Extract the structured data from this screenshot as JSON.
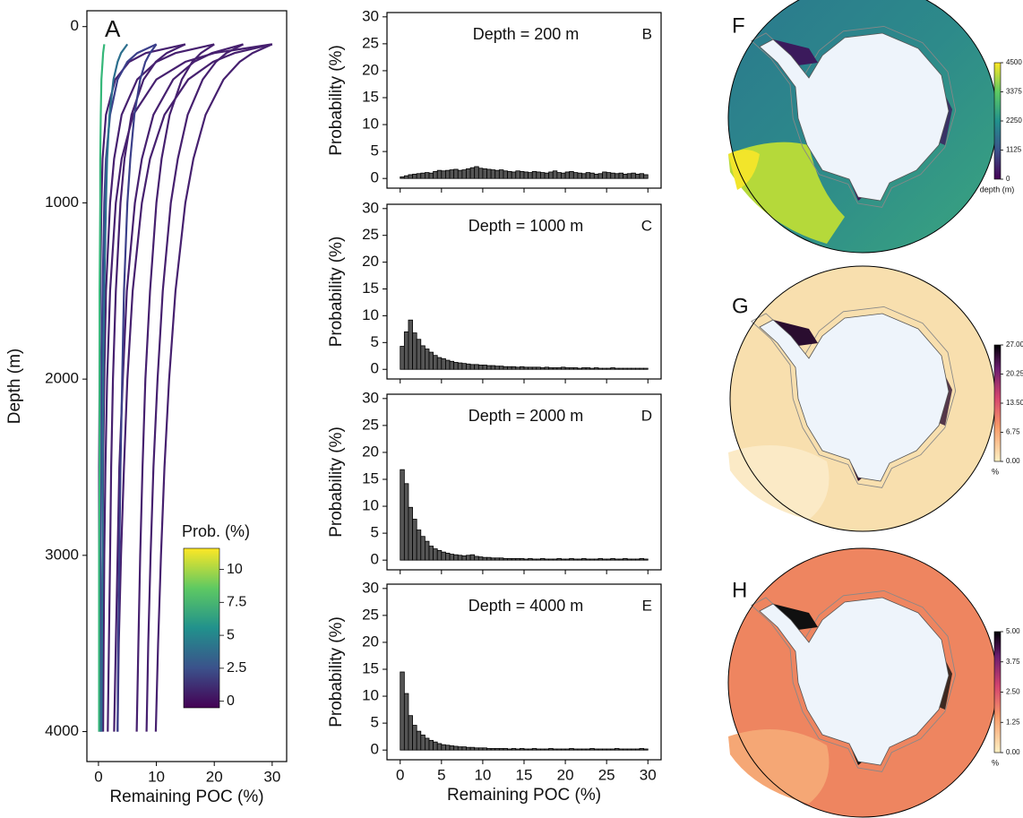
{
  "chart_data": [
    {
      "type": "line",
      "panel": "A",
      "xlabel": "Remaining POC (%)",
      "ylabel": "Depth (m)",
      "xlim": [
        -2,
        32.5
      ],
      "xticks": [
        0,
        10,
        20,
        30
      ],
      "ylim": [
        4170,
        -90
      ],
      "yticks": [
        0,
        1000,
        2000,
        3000,
        4000
      ],
      "y": [
        100,
        150,
        200,
        300,
        500,
        750,
        1000,
        1500,
        2000,
        2500,
        3000,
        3500,
        4000
      ],
      "series": [
        {
          "color": "#46206f",
          "values": [
            30,
            26.6,
            24.4,
            21.6,
            18.5,
            16.4,
            15.0,
            13.3,
            12.2,
            11.4,
            10.8,
            10.3,
            9.9
          ]
        },
        {
          "color": "#46206f",
          "values": [
            30,
            23.5,
            19.8,
            15.5,
            11.4,
            8.9,
            7.5,
            5.9,
            5.0,
            4.4,
            3.9,
            3.5,
            3.3
          ]
        },
        {
          "color": "#46206f",
          "values": [
            30,
            20.0,
            15.0,
            10.0,
            6.0,
            4.0,
            3.0,
            2.0,
            1.5,
            1.2,
            1.0,
            0.9,
            0.8
          ]
        },
        {
          "color": "#46206f",
          "values": [
            25,
            22.1,
            20.3,
            18.0,
            15.4,
            13.7,
            12.5,
            11.1,
            10.2,
            9.5,
            9.0,
            8.6,
            8.3
          ]
        },
        {
          "color": "#46206f",
          "values": [
            25,
            19.6,
            16.5,
            12.9,
            9.5,
            7.5,
            6.3,
            4.9,
            4.2,
            3.6,
            3.3,
            3.0,
            2.7
          ]
        },
        {
          "color": "#46206f",
          "values": [
            20,
            17.7,
            16.2,
            14.4,
            12.3,
            10.9,
            10.0,
            8.9,
            8.1,
            7.6,
            7.2,
            6.9,
            6.6
          ]
        },
        {
          "color": "#46206f",
          "values": [
            20,
            13.3,
            10.0,
            6.7,
            4.0,
            2.7,
            2.0,
            1.3,
            1.0,
            0.8,
            0.7,
            0.6,
            0.5
          ]
        },
        {
          "color": "#46206f",
          "values": [
            15,
            11.8,
            9.9,
            7.8,
            5.7,
            4.5,
            3.8,
            3.0,
            2.5,
            2.2,
            2.0,
            1.8,
            1.6
          ]
        },
        {
          "color": "#46206f",
          "values": [
            15,
            8.2,
            5.3,
            2.9,
            1.3,
            0.7,
            0.5,
            0.3,
            0.2,
            0.1,
            0.1,
            0.1,
            0.1
          ]
        },
        {
          "color": "#3b3f8a",
          "values": [
            10,
            8.9,
            8.1,
            7.2,
            6.2,
            5.5,
            5.0,
            4.4,
            4.1,
            3.8,
            3.6,
            3.4,
            3.3
          ]
        },
        {
          "color": "#3b3f8a",
          "values": [
            10,
            6.7,
            5.0,
            3.3,
            2.0,
            1.3,
            1.0,
            0.7,
            0.5,
            0.4,
            0.3,
            0.3,
            0.3
          ]
        },
        {
          "color": "#2c6f8e",
          "values": [
            5,
            3.9,
            3.3,
            2.6,
            1.9,
            1.5,
            1.3,
            1.0,
            0.8,
            0.7,
            0.7,
            0.6,
            0.5
          ]
        },
        {
          "color": "#35b779",
          "values": [
            1,
            0.8,
            0.7,
            0.5,
            0.4,
            0.3,
            0.3,
            0.2,
            0.2,
            0.2,
            0.1,
            0.1,
            0.1
          ]
        }
      ],
      "colorbar": {
        "label": "Prob. (%)",
        "lim": [
          -0.5,
          11.6
        ],
        "ticks": [
          0,
          2.5,
          5,
          7.5,
          10
        ]
      }
    },
    {
      "type": "histogram",
      "panel": "B",
      "title": "Depth = 200 m",
      "ylabel": "Probability (%)",
      "color": "#555555",
      "xlim": [
        -1.6,
        31.6
      ],
      "xticks": [
        0,
        5,
        10,
        15,
        20,
        25,
        30
      ],
      "ylim": [
        -1.8,
        30.8
      ],
      "yticks": [
        0,
        5,
        10,
        15,
        20,
        25,
        30
      ],
      "bins": [
        0,
        0.5,
        1,
        1.5,
        2,
        2.5,
        3,
        3.5,
        4,
        4.5,
        5,
        5.5,
        6,
        6.5,
        7,
        7.5,
        8,
        8.5,
        9,
        9.5,
        10,
        10.5,
        11,
        11.5,
        12,
        12.5,
        13,
        13.5,
        14,
        14.5,
        15,
        15.5,
        16,
        16.5,
        17,
        17.5,
        18,
        18.5,
        19,
        19.5,
        20,
        20.5,
        21,
        21.5,
        22,
        22.5,
        23,
        23.5,
        24,
        24.5,
        25,
        25.5,
        26,
        26.5,
        27,
        27.5,
        28,
        28.5,
        29,
        29.5,
        30
      ],
      "values": [
        0.3,
        0.5,
        0.7,
        0.8,
        0.9,
        1.0,
        1.1,
        1.0,
        1.3,
        1.5,
        1.4,
        1.5,
        1.6,
        1.7,
        1.5,
        1.6,
        1.8,
        2.0,
        2.2,
        1.9,
        1.8,
        1.7,
        1.6,
        1.5,
        1.6,
        1.4,
        1.3,
        1.2,
        1.4,
        1.3,
        1.2,
        1.1,
        1.3,
        1.2,
        1.1,
        1.0,
        1.2,
        1.4,
        1.1,
        1.0,
        1.2,
        1.3,
        1.1,
        1.0,
        0.9,
        1.1,
        1.0,
        0.8,
        0.9,
        1.2,
        1.1,
        1.0,
        0.9,
        1.0,
        0.8,
        0.9,
        1.0,
        0.8,
        0.9,
        0.7
      ]
    },
    {
      "type": "histogram",
      "panel": "C",
      "title": "Depth = 1000 m",
      "ylabel": "Probability (%)",
      "color": "#555555",
      "xlim": [
        -1.6,
        31.6
      ],
      "xticks": [
        0,
        5,
        10,
        15,
        20,
        25,
        30
      ],
      "ylim": [
        -1.8,
        30.8
      ],
      "yticks": [
        0,
        5,
        10,
        15,
        20,
        25,
        30
      ],
      "bins": [
        0,
        0.5,
        1,
        1.5,
        2,
        2.5,
        3,
        3.5,
        4,
        4.5,
        5,
        5.5,
        6,
        6.5,
        7,
        7.5,
        8,
        8.5,
        9,
        9.5,
        10,
        10.5,
        11,
        11.5,
        12,
        12.5,
        13,
        13.5,
        14,
        14.5,
        15,
        15.5,
        16,
        16.5,
        17,
        17.5,
        18,
        18.5,
        19,
        19.5,
        20,
        20.5,
        21,
        21.5,
        22,
        22.5,
        23,
        23.5,
        24,
        24.5,
        25,
        25.5,
        26,
        26.5,
        27,
        27.5,
        28,
        28.5,
        29,
        29.5,
        30
      ],
      "values": [
        4.3,
        7.0,
        9.2,
        6.8,
        5.6,
        4.4,
        3.8,
        3.2,
        2.6,
        2.2,
        2.0,
        1.7,
        1.5,
        1.3,
        1.2,
        1.1,
        1.0,
        0.9,
        0.9,
        0.8,
        0.8,
        0.7,
        0.7,
        0.6,
        0.6,
        0.5,
        0.5,
        0.5,
        0.4,
        0.5,
        0.4,
        0.4,
        0.4,
        0.4,
        0.3,
        0.4,
        0.3,
        0.3,
        0.3,
        0.4,
        0.3,
        0.3,
        0.3,
        0.2,
        0.3,
        0.3,
        0.2,
        0.3,
        0.2,
        0.2,
        0.2,
        0.3,
        0.2,
        0.2,
        0.2,
        0.2,
        0.2,
        0.2,
        0.2,
        0.2
      ]
    },
    {
      "type": "histogram",
      "panel": "D",
      "title": "Depth = 2000 m",
      "ylabel": "Probability (%)",
      "color": "#555555",
      "xlim": [
        -1.6,
        31.6
      ],
      "xticks": [
        0,
        5,
        10,
        15,
        20,
        25,
        30
      ],
      "ylim": [
        -1.8,
        30.8
      ],
      "yticks": [
        0,
        5,
        10,
        15,
        20,
        25,
        30
      ],
      "bins": [
        0,
        0.5,
        1,
        1.5,
        2,
        2.5,
        3,
        3.5,
        4,
        4.5,
        5,
        5.5,
        6,
        6.5,
        7,
        7.5,
        8,
        8.5,
        9,
        9.5,
        10,
        10.5,
        11,
        11.5,
        12,
        12.5,
        13,
        13.5,
        14,
        14.5,
        15,
        15.5,
        16,
        16.5,
        17,
        17.5,
        18,
        18.5,
        19,
        19.5,
        20,
        20.5,
        21,
        21.5,
        22,
        22.5,
        23,
        23.5,
        24,
        24.5,
        25,
        25.5,
        26,
        26.5,
        27,
        27.5,
        28,
        28.5,
        29,
        29.5,
        30
      ],
      "values": [
        16.8,
        14.2,
        9.8,
        7.6,
        5.6,
        4.4,
        3.5,
        2.6,
        2.1,
        1.8,
        1.5,
        1.3,
        1.1,
        1.0,
        0.9,
        0.8,
        0.9,
        1.0,
        0.7,
        0.6,
        0.5,
        0.5,
        0.4,
        0.4,
        0.4,
        0.3,
        0.3,
        0.3,
        0.3,
        0.3,
        0.2,
        0.3,
        0.2,
        0.2,
        0.3,
        0.2,
        0.2,
        0.2,
        0.3,
        0.2,
        0.2,
        0.3,
        0.2,
        0.2,
        0.3,
        0.2,
        0.2,
        0.2,
        0.3,
        0.2,
        0.2,
        0.3,
        0.2,
        0.2,
        0.3,
        0.2,
        0.2,
        0.2,
        0.3,
        0.2
      ]
    },
    {
      "type": "histogram",
      "panel": "E",
      "title": "Depth = 4000 m",
      "ylabel": "Probability (%)",
      "xlabel": "Remaining POC (%)",
      "color": "#555555",
      "xlim": [
        -1.6,
        31.6
      ],
      "xticks": [
        0,
        5,
        10,
        15,
        20,
        25,
        30
      ],
      "ylim": [
        -1.8,
        30.8
      ],
      "yticks": [
        0,
        5,
        10,
        15,
        20,
        25,
        30
      ],
      "bins": [
        0,
        0.5,
        1,
        1.5,
        2,
        2.5,
        3,
        3.5,
        4,
        4.5,
        5,
        5.5,
        6,
        6.5,
        7,
        7.5,
        8,
        8.5,
        9,
        9.5,
        10,
        10.5,
        11,
        11.5,
        12,
        12.5,
        13,
        13.5,
        14,
        14.5,
        15,
        15.5,
        16,
        16.5,
        17,
        17.5,
        18,
        18.5,
        19,
        19.5,
        20,
        20.5,
        21,
        21.5,
        22,
        22.5,
        23,
        23.5,
        24,
        24.5,
        25,
        25.5,
        26,
        26.5,
        27,
        27.5,
        28,
        28.5,
        29,
        29.5,
        30
      ],
      "values": [
        14.5,
        10.5,
        6.4,
        4.6,
        3.5,
        2.8,
        2.2,
        1.8,
        1.5,
        1.2,
        1.0,
        0.9,
        0.8,
        0.7,
        0.6,
        0.6,
        0.5,
        0.5,
        0.4,
        0.4,
        0.4,
        0.3,
        0.3,
        0.3,
        0.3,
        0.3,
        0.2,
        0.3,
        0.2,
        0.3,
        0.2,
        0.2,
        0.3,
        0.2,
        0.2,
        0.2,
        0.3,
        0.2,
        0.2,
        0.2,
        0.2,
        0.3,
        0.2,
        0.2,
        0.2,
        0.2,
        0.3,
        0.2,
        0.2,
        0.2,
        0.2,
        0.2,
        0.3,
        0.2,
        0.2,
        0.2,
        0.2,
        0.2,
        0.3,
        0.2
      ]
    },
    {
      "type": "map",
      "panel": "F",
      "colorbar": {
        "label": "depth (m)",
        "lim": [
          0,
          4500
        ],
        "ticks": [
          0,
          1125,
          2250,
          3375,
          4500
        ]
      }
    },
    {
      "type": "map",
      "panel": "G",
      "colorbar": {
        "label": "%",
        "lim": [
          0,
          27
        ],
        "ticks": [
          {
            "value": 0,
            "label": "0.00"
          },
          {
            "value": 6.75,
            "label": "6.75"
          },
          {
            "value": 13.5,
            "label": "13.50"
          },
          {
            "value": 20.25,
            "label": "20.25"
          },
          {
            "value": 27,
            "label": "27.00"
          }
        ]
      }
    },
    {
      "type": "map",
      "panel": "H",
      "colorbar": {
        "label": "%",
        "lim": [
          0,
          5
        ],
        "ticks": [
          {
            "value": 0,
            "label": "0.00"
          },
          {
            "value": 1.25,
            "label": "1.25"
          },
          {
            "value": 2.5,
            "label": "2.50"
          },
          {
            "value": 3.75,
            "label": "3.75"
          },
          {
            "value": 5,
            "label": "5.00"
          }
        ]
      }
    }
  ]
}
